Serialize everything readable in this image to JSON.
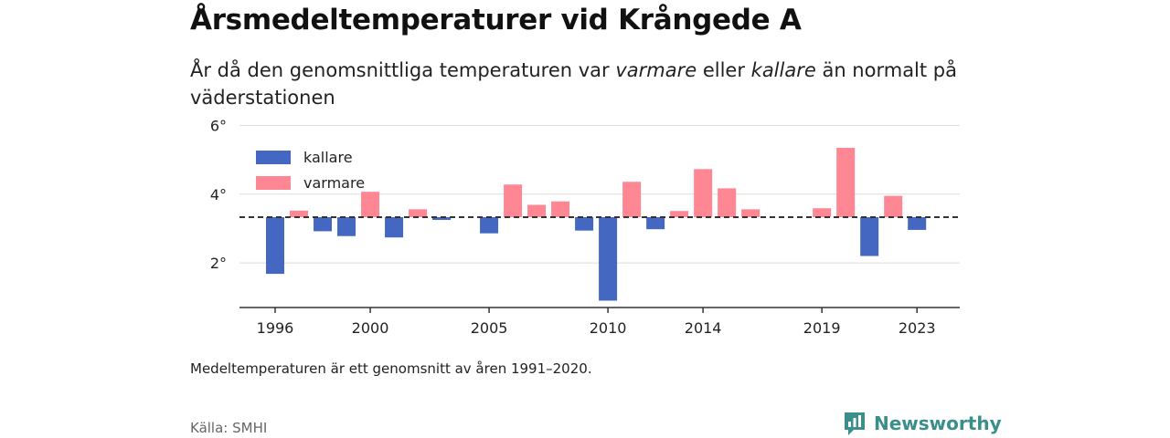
{
  "header": {
    "title": "Årsmedeltemperaturer vid Krångede A",
    "subtitle_part1": "År då den genomsnittliga temperaturen var ",
    "subtitle_em1": "varmare",
    "subtitle_part2": " eller ",
    "subtitle_em2": "kallare",
    "subtitle_part3": " än normalt på väderstationen"
  },
  "footer": {
    "note": "Medeltemperaturen är ett genomsnitt av åren 1991–2020.",
    "source": "Källa: SMHI",
    "brand": "Newsworthy",
    "brand_icon": "newsworthy-logo-icon"
  },
  "colors": {
    "kallare": "#4468c2",
    "varmare": "#ff8794",
    "baseline": "#333333",
    "grid": "#dddddd",
    "brand": "#3a8f8a"
  },
  "chart_data": {
    "type": "bar",
    "baseline": 3.33,
    "ylim": [
      0.7,
      6.2
    ],
    "y_ticks": [
      {
        "value": 2,
        "label": "2°"
      },
      {
        "value": 4,
        "label": "4°"
      },
      {
        "value": 6,
        "label": "6°"
      }
    ],
    "x_ticks": [
      "1996",
      "2000",
      "2005",
      "2010",
      "2014",
      "2019",
      "2023"
    ],
    "x_range": [
      1994.5,
      2024.8
    ],
    "legend": {
      "placement": "top-left",
      "items": [
        {
          "key": "kallare",
          "label": "kallare"
        },
        {
          "key": "varmare",
          "label": "varmare"
        }
      ]
    },
    "series": [
      {
        "name": "kallare",
        "x": [
          1996,
          1998,
          1999,
          2001,
          2003,
          2005,
          2009,
          2010,
          2012,
          2021,
          2023
        ],
        "values": [
          1.68,
          2.92,
          2.78,
          2.74,
          3.25,
          2.86,
          2.94,
          0.9,
          2.98,
          2.2,
          2.96
        ]
      },
      {
        "name": "varmare",
        "x": [
          1997,
          2000,
          2002,
          2006,
          2007,
          2008,
          2011,
          2013,
          2014,
          2015,
          2016,
          2019,
          2020,
          2022
        ],
        "values": [
          3.52,
          4.07,
          3.56,
          4.28,
          3.69,
          3.79,
          4.36,
          3.51,
          4.73,
          4.17,
          3.56,
          3.59,
          5.35,
          3.95
        ]
      }
    ]
  }
}
